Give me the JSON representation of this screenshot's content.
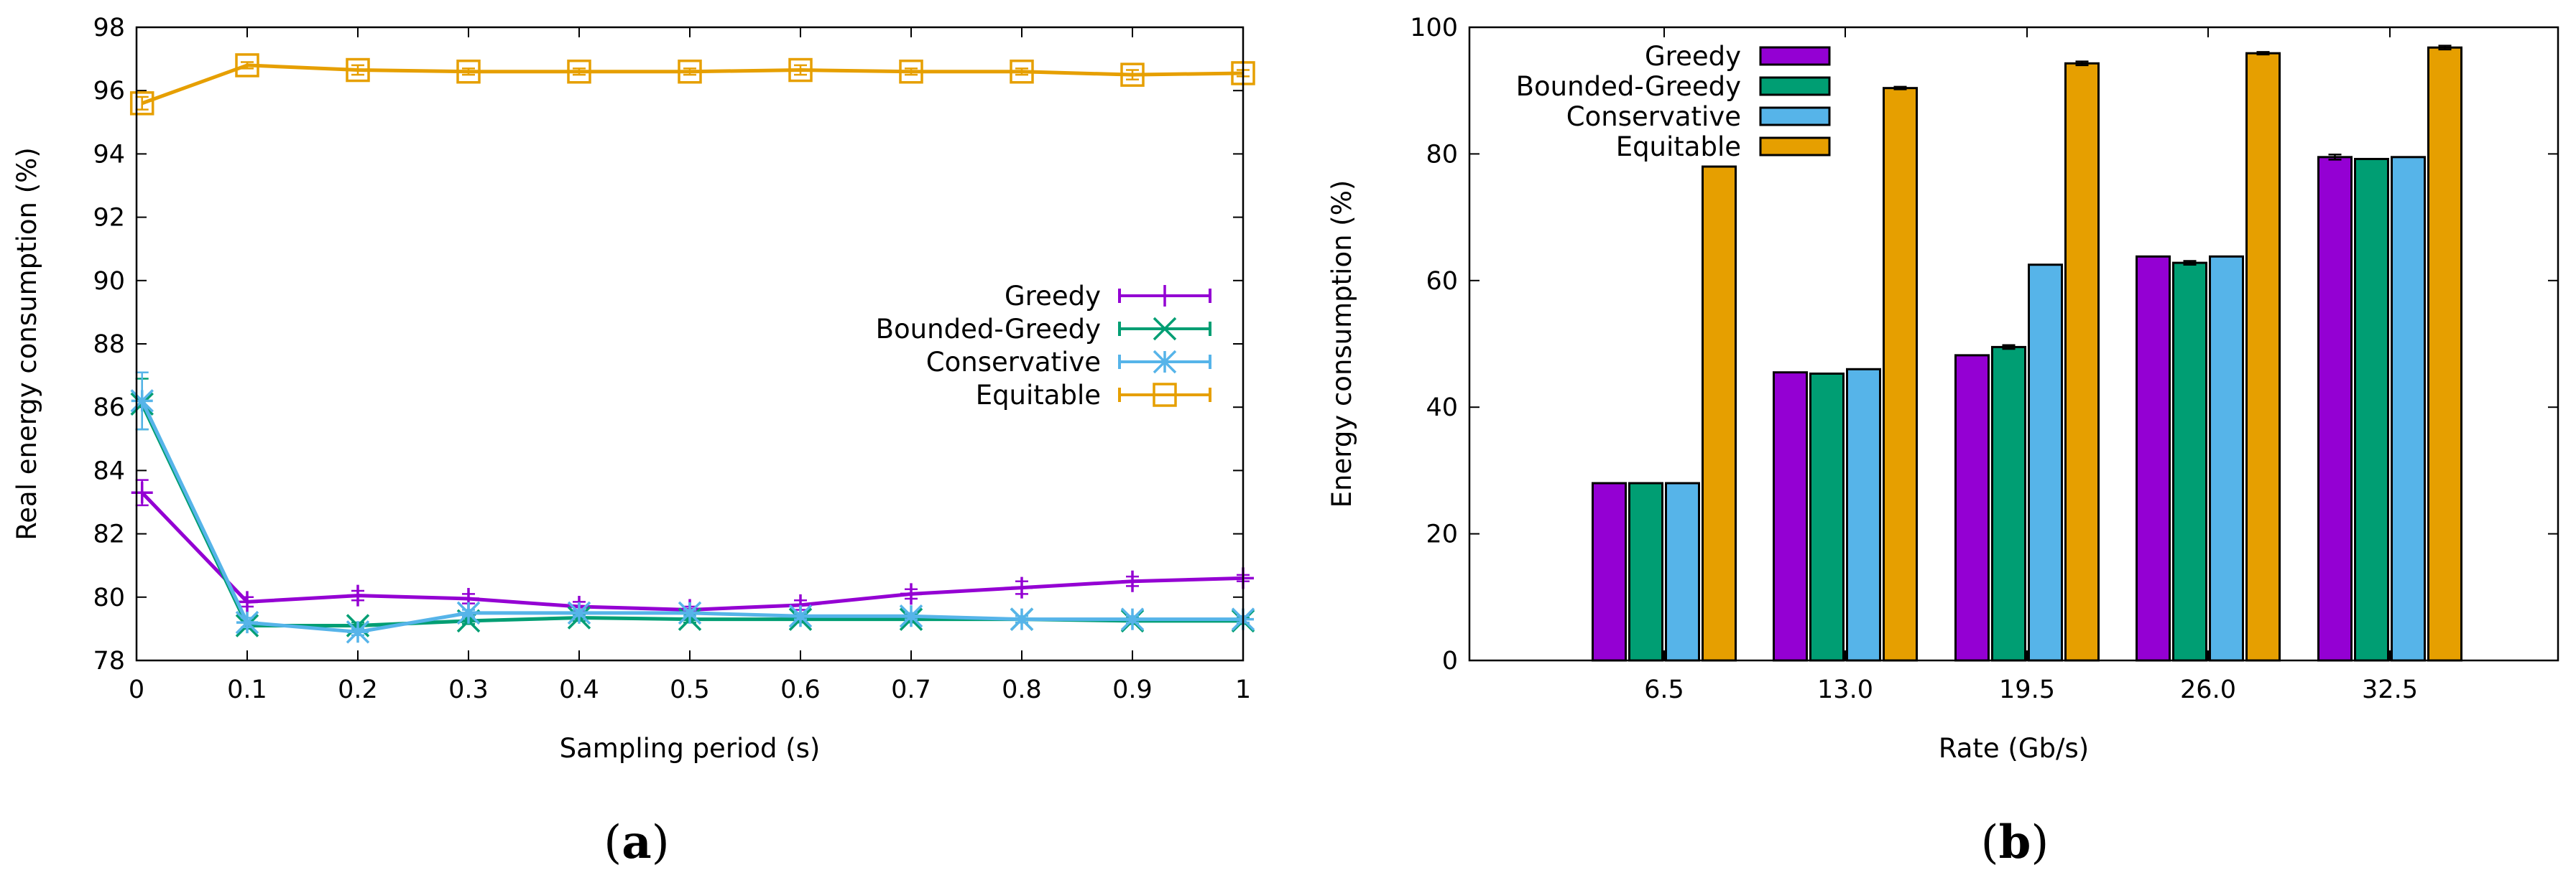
{
  "chart_data": [
    {
      "type": "line",
      "panel_label": "a",
      "title": "",
      "xlabel": "Sampling period (s)",
      "ylabel": "Real energy consumption (%)",
      "xlim": [
        0,
        1
      ],
      "ylim": [
        78,
        98
      ],
      "x_ticks": [
        "0",
        "0.1",
        "0.2",
        "0.3",
        "0.4",
        "0.5",
        "0.6",
        "0.7",
        "0.8",
        "0.9",
        "1"
      ],
      "y_ticks": [
        "78",
        "80",
        "82",
        "84",
        "86",
        "88",
        "90",
        "92",
        "94",
        "96",
        "98"
      ],
      "legend_position": "center-right",
      "x": [
        0.005,
        0.1,
        0.2,
        0.3,
        0.4,
        0.5,
        0.6,
        0.7,
        0.8,
        0.9,
        1.0
      ],
      "series": [
        {
          "name": "Greedy",
          "color": "#9400d3",
          "marker": "plus",
          "values": [
            83.3,
            79.85,
            80.05,
            79.95,
            79.7,
            79.6,
            79.75,
            80.1,
            80.3,
            80.5,
            80.6
          ],
          "errors": [
            0.4,
            0.15,
            0.15,
            0.15,
            0.15,
            0.1,
            0.15,
            0.15,
            0.2,
            0.15,
            0.1
          ]
        },
        {
          "name": "Bounded-Greedy",
          "color": "#009e73",
          "marker": "x",
          "values": [
            86.1,
            79.1,
            79.1,
            79.25,
            79.35,
            79.3,
            79.3,
            79.3,
            79.3,
            79.25,
            79.25
          ],
          "errors": [
            0.8,
            0.1,
            0.1,
            0.1,
            0.1,
            0.1,
            0.1,
            0.1,
            0.1,
            0.1,
            0.1
          ]
        },
        {
          "name": "Conservative",
          "color": "#56b4e9",
          "marker": "star",
          "values": [
            86.2,
            79.2,
            78.9,
            79.5,
            79.5,
            79.5,
            79.4,
            79.4,
            79.3,
            79.3,
            79.3
          ],
          "errors": [
            0.9,
            0.15,
            0.1,
            0.1,
            0.1,
            0.1,
            0.1,
            0.1,
            0.1,
            0.1,
            0.1
          ]
        },
        {
          "name": "Equitable",
          "color": "#e69f00",
          "marker": "square",
          "values": [
            95.6,
            96.8,
            96.65,
            96.6,
            96.6,
            96.6,
            96.65,
            96.6,
            96.6,
            96.5,
            96.55
          ],
          "errors": [
            0.2,
            0.1,
            0.15,
            0.1,
            0.1,
            0.1,
            0.15,
            0.1,
            0.1,
            0.15,
            0.1
          ]
        }
      ]
    },
    {
      "type": "bar",
      "panel_label": "b",
      "title": "",
      "xlabel": "Rate (Gb/s)",
      "ylabel": "Energy consumption (%)",
      "ylim": [
        0,
        100
      ],
      "y_ticks": [
        "0",
        "20",
        "40",
        "60",
        "80",
        "100"
      ],
      "categories": [
        "6.5",
        "13.0",
        "19.5",
        "26.0",
        "32.5"
      ],
      "legend_position": "top-left",
      "series": [
        {
          "name": "Greedy",
          "color": "#9400d3",
          "values": [
            28,
            45.5,
            48.2,
            63.8,
            79.5
          ],
          "errors": [
            0,
            0,
            0,
            0,
            0.4
          ]
        },
        {
          "name": "Bounded-Greedy",
          "color": "#009e73",
          "values": [
            28,
            45.3,
            49.5,
            62.8,
            79.2
          ],
          "errors": [
            0,
            0,
            0.3,
            0.3,
            0
          ]
        },
        {
          "name": "Conservative",
          "color": "#56b4e9",
          "values": [
            28,
            46,
            62.5,
            63.8,
            79.5
          ],
          "errors": [
            0,
            0,
            0,
            0,
            0
          ]
        },
        {
          "name": "Equitable",
          "color": "#e69f00",
          "values": [
            78,
            90.4,
            94.3,
            95.9,
            96.8
          ],
          "errors": [
            0,
            0.2,
            0.3,
            0.2,
            0.3
          ]
        }
      ]
    }
  ]
}
